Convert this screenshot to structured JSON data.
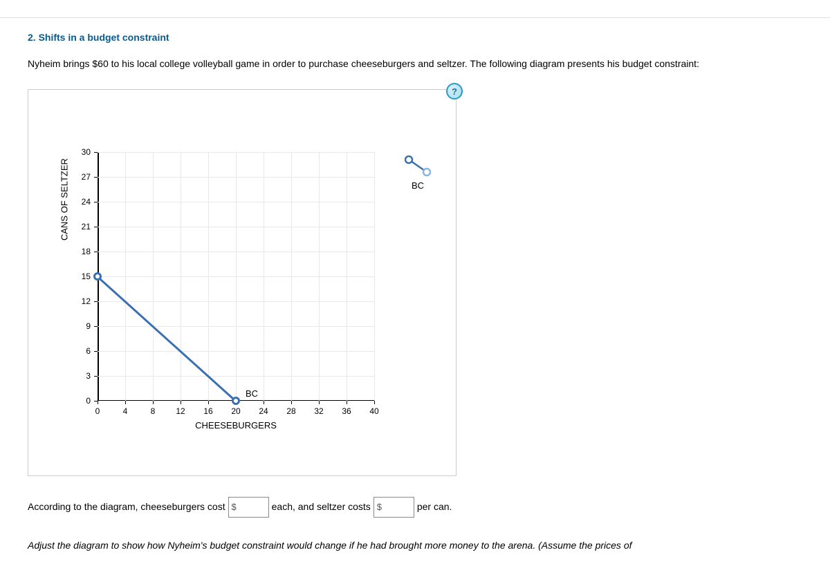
{
  "section": {
    "title": "2. Shifts in a budget constraint"
  },
  "intro": "Nyheim brings $60 to his local college volleyball game in order to purchase cheeseburgers and seltzer. The following diagram presents his budget constraint:",
  "help_label": "?",
  "chart": {
    "type": "line",
    "background_color": "#ffffff",
    "grid_color": "#e8e8e8",
    "axis_color": "#000000",
    "x_axis_title": "CHEESEBURGERS",
    "y_axis_title": "CANS OF SELTZER",
    "xlim": [
      0,
      40
    ],
    "ylim": [
      0,
      30
    ],
    "x_ticks": [
      0,
      4,
      8,
      12,
      16,
      20,
      24,
      28,
      32,
      36,
      40
    ],
    "y_ticks": [
      0,
      3,
      6,
      9,
      12,
      15,
      18,
      21,
      24,
      27,
      30
    ],
    "label_fontsize": 12,
    "title_fontsize": 13,
    "bc_line": {
      "start": {
        "x": 0,
        "y": 15
      },
      "end": {
        "x": 20,
        "y": 0
      },
      "color": "#3a6fb0",
      "width": 3,
      "endpoint_fill": "#ffffff",
      "endpoint_stroke": "#3a6fb0",
      "label": "BC"
    },
    "legend": {
      "label": "BC",
      "color": "#3a6fb0",
      "secondary_color": "#8bb5dc"
    }
  },
  "question": {
    "prefix": "According to the diagram, cheeseburgers cost ",
    "middle": " each, and seltzer costs ",
    "suffix": " per can.",
    "currency": "$",
    "input1_value": "",
    "input2_value": ""
  },
  "instruction": "Adjust the diagram to show how Nyheim's budget constraint would change if he had brought more money to the arena. (Assume the prices of"
}
